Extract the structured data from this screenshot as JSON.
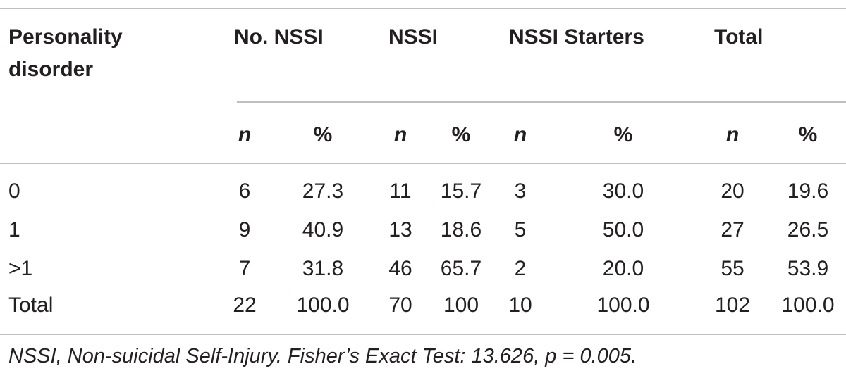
{
  "table": {
    "header": {
      "row_label_line1": "Personality",
      "row_label_line2": "disorder",
      "groups": [
        "No. NSSI",
        "NSSI",
        "NSSI Starters",
        "Total"
      ],
      "subheaders": [
        "n",
        "%",
        "n",
        "%",
        "n",
        "%",
        "n",
        "%"
      ]
    },
    "rows": [
      {
        "label": "0",
        "cells": [
          "6",
          "27.3",
          "11",
          "15.7",
          "3",
          "30.0",
          "20",
          "19.6"
        ]
      },
      {
        "label": "1",
        "cells": [
          "9",
          "40.9",
          "13",
          "18.6",
          "5",
          "50.0",
          "27",
          "26.5"
        ]
      },
      {
        "label": ">1",
        "cells": [
          "7",
          "31.8",
          "46",
          "65.7",
          "2",
          "20.0",
          "55",
          "53.9"
        ]
      },
      {
        "label": "Total",
        "cells": [
          "22",
          "100.0",
          "70",
          "100",
          "10",
          "100.0",
          "102",
          "100.0"
        ]
      }
    ],
    "footnote": "NSSI, Non-suicidal Self-Injury. Fisher’s Exact Test: 13.626, p = 0.005."
  }
}
